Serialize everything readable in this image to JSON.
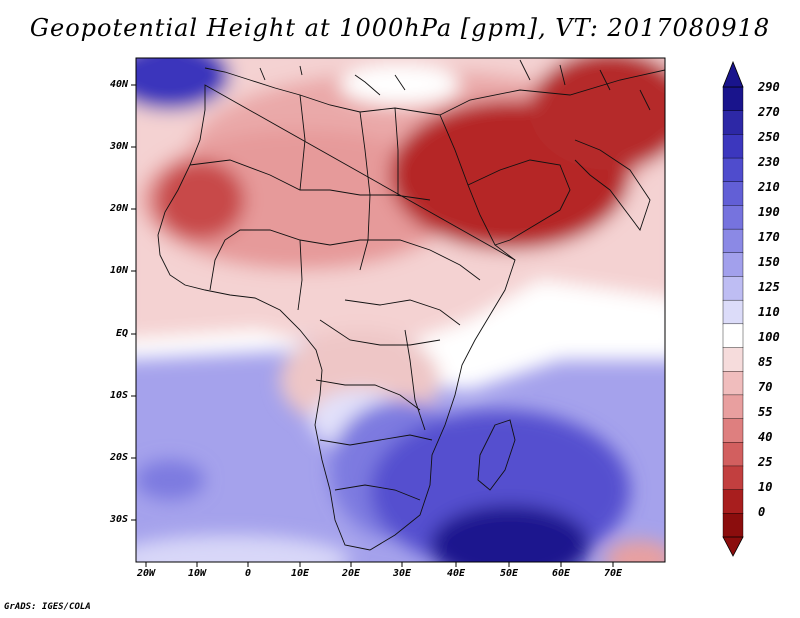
{
  "title": "Geopotential Height at 1000hPa [gpm], VT: 2017080918",
  "credit": "GrADS: IGES/COLA",
  "map": {
    "variable": "Geopotential Height",
    "level": "1000hPa",
    "units": "gpm",
    "valid_time": "2017080918",
    "lat_labels": [
      "40N",
      "30N",
      "20N",
      "10N",
      "EQ",
      "10S",
      "20S",
      "30S"
    ],
    "lon_labels": [
      "20W",
      "10W",
      "0",
      "10E",
      "20E",
      "30E",
      "40E",
      "50E",
      "60E",
      "70E"
    ]
  },
  "colorbar": {
    "labels": [
      "290",
      "270",
      "250",
      "230",
      "210",
      "190",
      "170",
      "150",
      "125",
      "110",
      "100",
      "85",
      "70",
      "55",
      "40",
      "25",
      "10",
      "0"
    ],
    "colors": [
      "#19148c",
      "#2d28a6",
      "#3c37be",
      "#4f4ccd",
      "#625fd6",
      "#7673de",
      "#8b89e5",
      "#a2a0ec",
      "#bebdf3",
      "#dcdcf9",
      "#ffffff",
      "#f6dcdc",
      "#f0bdbd",
      "#e89f9f",
      "#de7f7f",
      "#d25f5f",
      "#c23f3f",
      "#a81e1e",
      "#8b0d0d"
    ]
  }
}
